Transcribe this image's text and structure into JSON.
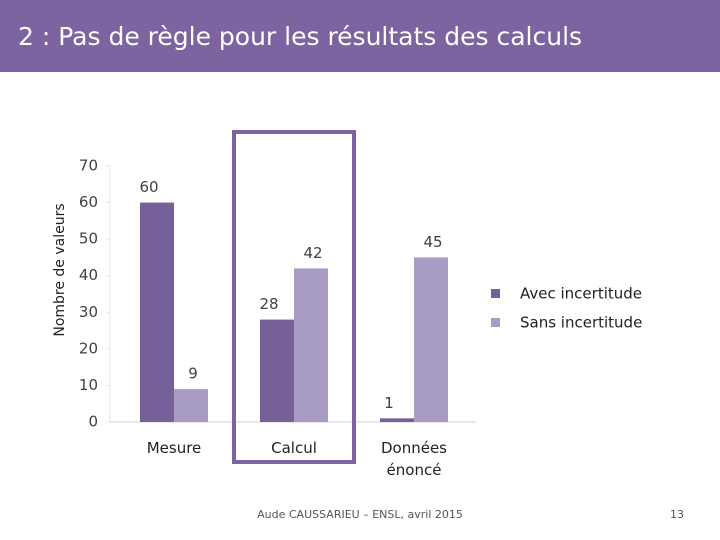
{
  "slide": {
    "title": "2 : Pas de règle pour les résultats des calculs",
    "footer": "Aude CAUSSARIEU – ENSL, avril 2015",
    "page_number": "13"
  },
  "chart_data": {
    "type": "bar",
    "y_label": "Nombre de valeurs",
    "categories": [
      "Mesure",
      "Calcul",
      "Données énoncé"
    ],
    "series": [
      {
        "name": "Avec incertitude",
        "color": "#76609a",
        "values": [
          60,
          28,
          1
        ]
      },
      {
        "name": "Sans incertitude",
        "color": "#a99cc4",
        "values": [
          9,
          42,
          45
        ]
      }
    ],
    "ylim": [
      0,
      70
    ],
    "yticks": [
      0,
      10,
      20,
      30,
      40,
      50,
      60,
      70
    ],
    "grid": false,
    "legend": "right"
  }
}
